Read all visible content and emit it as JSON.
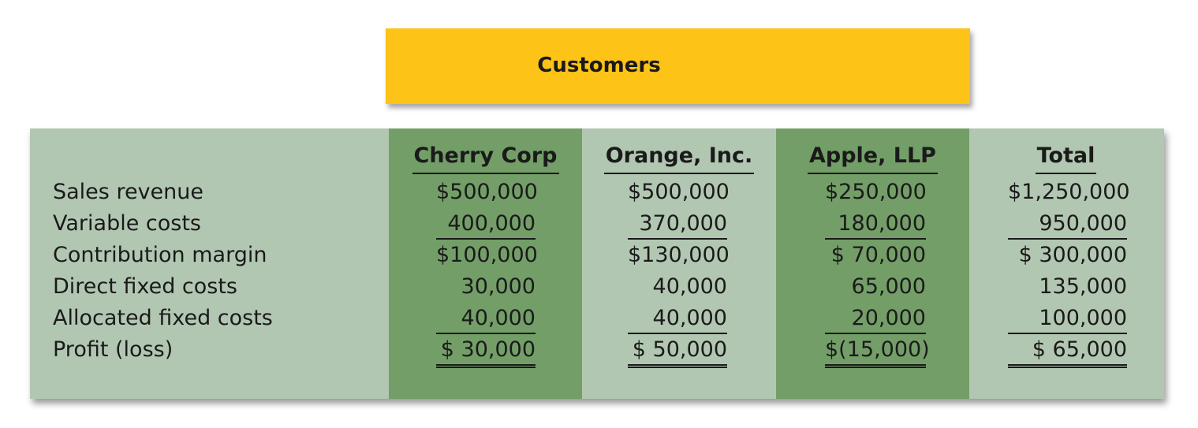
{
  "banner": {
    "title": "Customers"
  },
  "columns": [
    "Cherry Corp",
    "Orange, Inc.",
    "Apple, LLP",
    "Total"
  ],
  "rows": [
    {
      "label": "Sales revenue",
      "values": [
        "$500,000",
        "$500,000",
        "$250,000",
        "$1,250,000"
      ]
    },
    {
      "label": "Variable costs",
      "values": [
        "400,000",
        "370,000",
        "180,000",
        "950,000"
      ]
    },
    {
      "label": "Contribution margin",
      "values": [
        "$100,000",
        "$130,000",
        "$ 70,000",
        "$ 300,000"
      ]
    },
    {
      "label": "Direct fixed costs",
      "values": [
        "30,000",
        "40,000",
        "65,000",
        "135,000"
      ]
    },
    {
      "label": "Allocated fixed costs",
      "values": [
        "40,000",
        "40,000",
        "20,000",
        "100,000"
      ]
    },
    {
      "label": "Profit (loss)",
      "values": [
        "$ 30,000",
        "$ 50,000",
        "$(15,000)",
        "$ 65,000"
      ]
    }
  ],
  "colors": {
    "banner": "#fdc316",
    "panel": "#b2c7b2",
    "highlight_column": "#739e68"
  }
}
